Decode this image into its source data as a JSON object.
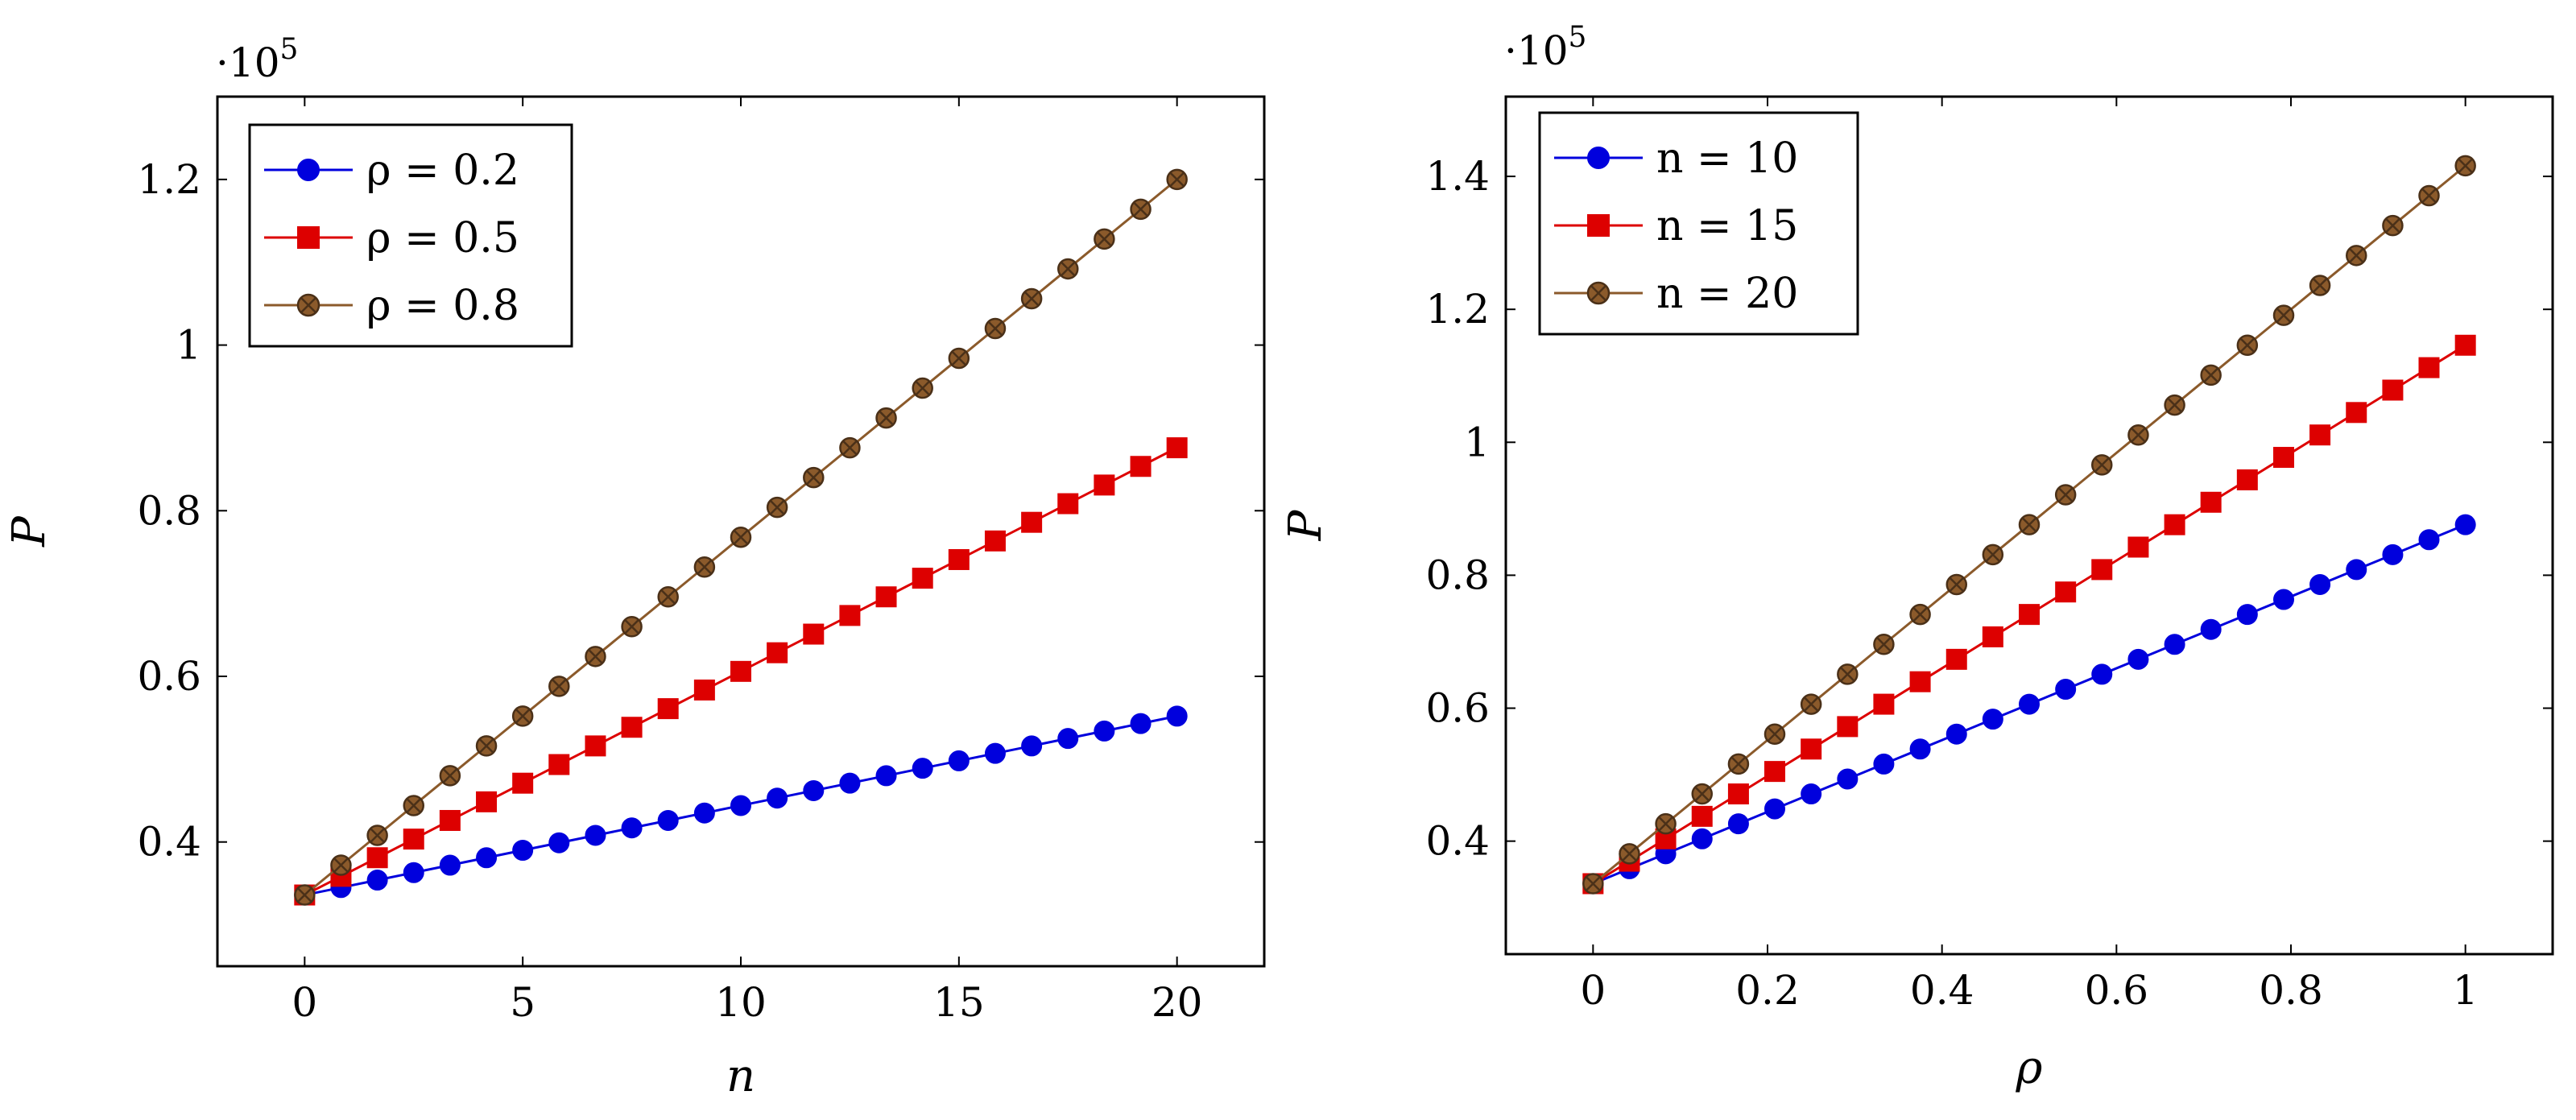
{
  "chart_data": [
    {
      "type": "line",
      "xlabel": "n",
      "ylabel": "P",
      "y_multiplier_label": "·10",
      "y_multiplier_exponent": "5",
      "xlim": [
        -2,
        22
      ],
      "ylim": [
        0.25,
        1.3
      ],
      "x_ticks": [
        0,
        5,
        10,
        15,
        20
      ],
      "x_tick_labels": [
        "0",
        "5",
        "10",
        "15",
        "20"
      ],
      "y_ticks": [
        0.4,
        0.6,
        0.8,
        1.0,
        1.2
      ],
      "y_tick_labels": [
        "0.4",
        "0.6",
        "0.8",
        "1",
        "1.2"
      ],
      "legend_position": "top-left",
      "x": [
        0,
        0.833,
        1.667,
        2.5,
        3.333,
        4.167,
        5,
        5.833,
        6.667,
        7.5,
        8.333,
        9.167,
        10,
        10.833,
        11.667,
        12.5,
        13.333,
        14.167,
        15,
        15.833,
        16.667,
        17.5,
        18.333,
        19.167,
        20
      ],
      "series": [
        {
          "name": "ρ = 0.2",
          "color": "#0000dd",
          "marker": "circle",
          "values": [
            0.336,
            0.345,
            0.354,
            0.363,
            0.372,
            0.381,
            0.39,
            0.399,
            0.408,
            0.417,
            0.426,
            0.435,
            0.444,
            0.453,
            0.462,
            0.471,
            0.48,
            0.489,
            0.498,
            0.507,
            0.516,
            0.525,
            0.534,
            0.543,
            0.552
          ]
        },
        {
          "name": "ρ = 0.5",
          "color": "#dd0000",
          "marker": "square",
          "values": [
            0.336,
            0.3585,
            0.381,
            0.4035,
            0.426,
            0.4485,
            0.471,
            0.4935,
            0.516,
            0.5385,
            0.561,
            0.5835,
            0.606,
            0.6285,
            0.651,
            0.6735,
            0.696,
            0.7185,
            0.741,
            0.7635,
            0.786,
            0.8085,
            0.831,
            0.8535,
            0.876
          ]
        },
        {
          "name": "ρ = 0.8",
          "color": "#8b5a2b",
          "marker": "otimes",
          "values": [
            0.336,
            0.372,
            0.408,
            0.444,
            0.48,
            0.516,
            0.552,
            0.588,
            0.624,
            0.66,
            0.696,
            0.732,
            0.768,
            0.804,
            0.84,
            0.876,
            0.912,
            0.948,
            0.984,
            1.02,
            1.056,
            1.092,
            1.128,
            1.164,
            1.2
          ]
        }
      ]
    },
    {
      "type": "line",
      "xlabel": "ρ",
      "ylabel": "P",
      "y_multiplier_label": "·10",
      "y_multiplier_exponent": "5",
      "xlim": [
        -0.1,
        1.1
      ],
      "ylim": [
        0.23,
        1.52
      ],
      "x_ticks": [
        0,
        0.2,
        0.4,
        0.6,
        0.8,
        1.0
      ],
      "x_tick_labels": [
        "0",
        "0.2",
        "0.4",
        "0.6",
        "0.8",
        "1"
      ],
      "y_ticks": [
        0.4,
        0.6,
        0.8,
        1.0,
        1.2,
        1.4
      ],
      "y_tick_labels": [
        "0.4",
        "0.6",
        "0.8",
        "1",
        "1.2",
        "1.4"
      ],
      "legend_position": "top-left",
      "x": [
        0,
        0.0417,
        0.0833,
        0.125,
        0.1667,
        0.2083,
        0.25,
        0.2917,
        0.3333,
        0.375,
        0.4167,
        0.4583,
        0.5,
        0.5417,
        0.5833,
        0.625,
        0.6667,
        0.7083,
        0.75,
        0.7917,
        0.8333,
        0.875,
        0.9167,
        0.9583,
        1.0
      ],
      "series": [
        {
          "name": "n = 10",
          "color": "#0000dd",
          "marker": "circle",
          "values": [
            0.336,
            0.3585,
            0.381,
            0.4035,
            0.426,
            0.4485,
            0.471,
            0.4935,
            0.516,
            0.5385,
            0.561,
            0.5835,
            0.606,
            0.6285,
            0.651,
            0.6735,
            0.696,
            0.7185,
            0.741,
            0.7635,
            0.786,
            0.8085,
            0.831,
            0.8535,
            0.876
          ]
        },
        {
          "name": "n = 15",
          "color": "#dd0000",
          "marker": "square",
          "values": [
            0.336,
            0.3698,
            0.4035,
            0.4373,
            0.471,
            0.5048,
            0.5385,
            0.5723,
            0.606,
            0.6398,
            0.6735,
            0.7073,
            0.741,
            0.7748,
            0.8085,
            0.8423,
            0.876,
            0.9098,
            0.9435,
            0.9773,
            1.011,
            1.0448,
            1.0785,
            1.1123,
            1.146
          ]
        },
        {
          "name": "n = 20",
          "color": "#8b5a2b",
          "marker": "otimes",
          "values": [
            0.336,
            0.381,
            0.426,
            0.471,
            0.516,
            0.561,
            0.606,
            0.651,
            0.696,
            0.741,
            0.786,
            0.831,
            0.876,
            0.921,
            0.966,
            1.011,
            1.056,
            1.101,
            1.146,
            1.191,
            1.236,
            1.281,
            1.326,
            1.371,
            1.416
          ]
        }
      ]
    }
  ]
}
